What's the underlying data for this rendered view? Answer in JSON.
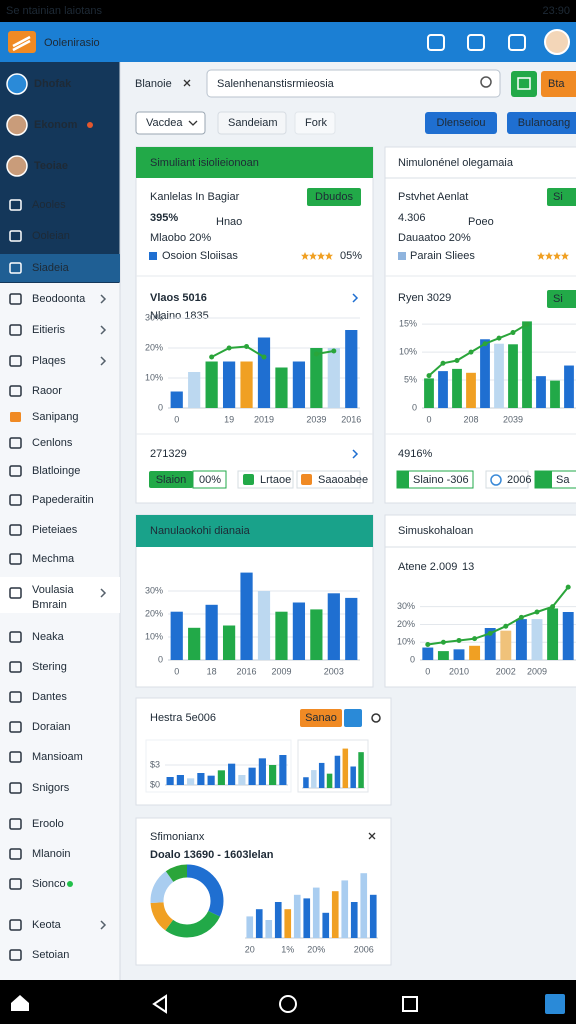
{
  "status_bar": {
    "left": "Se ntainian laiotans",
    "time": "23:90"
  },
  "app_bar": {
    "title": "Oolenirasio"
  },
  "sidebar": {
    "items": [
      {
        "label": "Dhofak"
      },
      {
        "label": "Ekonom"
      },
      {
        "label": "Teoiae"
      },
      {
        "label": "Aooles"
      },
      {
        "label": "Ooleian"
      },
      {
        "label": "Siadeia"
      },
      {
        "label": "Beodoonta"
      },
      {
        "label": "Eitieris"
      },
      {
        "label": "Plaqes"
      },
      {
        "label": "Raoor"
      },
      {
        "label": "Sanipang"
      },
      {
        "label": "Cenlons"
      },
      {
        "label": "Blatloinge"
      },
      {
        "label": "Papederaitin"
      },
      {
        "label": "Pieteiaes"
      },
      {
        "label": "Mechma"
      },
      {
        "label": "Voulasia",
        "sub": "Bmrain"
      },
      {
        "label": "Neaka"
      },
      {
        "label": "Stering"
      },
      {
        "label": "Dantes"
      },
      {
        "label": "Doraian"
      },
      {
        "label": "Mansioam"
      },
      {
        "label": "Snigors"
      },
      {
        "label": "Eroolo"
      },
      {
        "label": "Mlanoin"
      },
      {
        "label": "Sionco"
      },
      {
        "label": "Keota"
      },
      {
        "label": "Setoian"
      }
    ]
  },
  "toolbar": {
    "tab": "Blanoie",
    "search": "Salenhenanstisrmieosia",
    "orange_button": "Bta",
    "filter": "Vacdea",
    "chip1": "Sandeiam",
    "chip2": "Fork",
    "button1": "Dlenseiou",
    "button2": "Bulanoang"
  },
  "cards": [
    {
      "title": "Simuliant isiolieionoan",
      "label": "Kanlelas In Bagiar",
      "big": "395%",
      "big_note": "Hnao",
      "sub": "Mlaobo 20%",
      "tag": "Dbudos",
      "meta": "Osoion Sloiisas",
      "rating": "05%",
      "chart": {
        "title": "Vlaos 5016",
        "subtitle": "Nlaino 1835",
        "ylim": [
          0,
          35
        ],
        "yticks": [
          0,
          {
            "value": 10,
            "label": "10%"
          },
          {
            "value": 20,
            "label": "20%"
          },
          {
            "value": 30,
            "label": "30%"
          }
        ],
        "categories": [
          "0",
          null,
          null,
          "19",
          null,
          "2019",
          null,
          null,
          "2039",
          null,
          "2016"
        ],
        "values": [
          5.5,
          12,
          15.5,
          15.5,
          15.5,
          23.5,
          13.5,
          15.5,
          20,
          20,
          26
        ],
        "colors": [
          "#1f6fd1",
          "#bcd8f0",
          "#22a948",
          "#1f6fd1",
          "#f0a023",
          "#1f6fd1",
          "#22a948",
          "#1f6fd1",
          "#22a948",
          "#bcd8f0",
          "#1f6fd1"
        ],
        "line": [
          null,
          null,
          17,
          20,
          20.5,
          17,
          null,
          null,
          18,
          19,
          null
        ],
        "line_color": "#2aa53a"
      },
      "total": "271329",
      "chips": [
        "Slaion",
        "00%",
        "Lrtaoe",
        "Saaoabee"
      ]
    },
    {
      "title": "Nimulonénel olegamaia",
      "label": "Pstvhet Aenlat",
      "big": "4.306",
      "big_note": "Poeo",
      "sub": "Dauaatoo 20%",
      "tag": "Si",
      "meta": "Parain Sliees",
      "chart": {
        "title": "Ryen 3029",
        "tag": "Si",
        "ylim": [
          0,
          17
        ],
        "yticks": [
          0,
          {
            "value": 5,
            "label": "5%"
          },
          {
            "value": 10,
            "label": "10%"
          },
          {
            "value": 15,
            "label": "15%"
          }
        ],
        "categories": [
          "0",
          null,
          null,
          "208",
          null,
          null,
          "2039",
          null,
          null,
          null,
          null
        ],
        "values": [
          5.3,
          6.6,
          7,
          6.3,
          12.3,
          11.5,
          11.4,
          15.5,
          5.7,
          4.9,
          7.6
        ],
        "colors": [
          "#22a948",
          "#1f6fd1",
          "#22a948",
          "#f0a023",
          "#1f6fd1",
          "#bcd8f0",
          "#22a948",
          "#22a948",
          "#1f6fd1",
          "#22a948",
          "#1f6fd1"
        ],
        "line": [
          5.8,
          8,
          8.5,
          10,
          11.5,
          12.5,
          13.5,
          15,
          null,
          null,
          null
        ],
        "line_color": "#2aa53a"
      },
      "total": "4916%",
      "chips": [
        "Slaino -306",
        "2006",
        "Sa"
      ]
    },
    {
      "title": "Nanulaokohi dianaia",
      "chart": {
        "ylim": [
          0,
          40
        ],
        "yticks": [
          0,
          {
            "value": 10,
            "label": "10%"
          },
          {
            "value": 20,
            "label": "20%"
          },
          {
            "value": 30,
            "label": "30%"
          }
        ],
        "categories": [
          "0",
          null,
          "18",
          null,
          "2016",
          null,
          "2009",
          null,
          null,
          "2003",
          null
        ],
        "values": [
          21,
          14,
          24,
          15,
          38,
          30,
          21,
          25,
          22,
          29,
          27
        ],
        "colors": [
          "#1f6fd1",
          "#22a948",
          "#1f6fd1",
          "#22a948",
          "#1f6fd1",
          "#bcd8f0",
          "#22a948",
          "#1f6fd1",
          "#22a948",
          "#1f6fd1",
          "#1f6fd1"
        ]
      }
    },
    {
      "title": "Simuskohaloan",
      "subtitle": "Atene 2.009",
      "note": "13",
      "chart": {
        "ylim": [
          0,
          45
        ],
        "yticks": [
          0,
          {
            "value": 10,
            "label": "10%"
          },
          {
            "value": 20,
            "label": "20%"
          },
          {
            "value": 30,
            "label": "30%"
          }
        ],
        "categories": [
          "0",
          null,
          "2010",
          null,
          null,
          "2002",
          null,
          "2009",
          null,
          null
        ],
        "values": [
          7,
          5,
          6,
          8,
          18,
          16.5,
          23,
          23,
          29,
          27
        ],
        "colors": [
          "#1f6fd1",
          "#22a948",
          "#1f6fd1",
          "#f0a023",
          "#1f6fd1",
          "#f0c27a",
          "#1f6fd1",
          "#bcd8f0",
          "#22a948",
          "#1f6fd1"
        ],
        "line": [
          8.7,
          10,
          11,
          12,
          15,
          19,
          24,
          27,
          30,
          41
        ],
        "line_color": "#2aa53a"
      }
    },
    {
      "title": "Hestra 5e006",
      "button": "Sanao",
      "chart": {
        "ylim": [
          0,
          6
        ],
        "yticks": [
          {
            "value": 0,
            "label": "$0"
          },
          {
            "value": 3,
            "label": "$3"
          }
        ],
        "values": [
          1.2,
          1.5,
          1,
          1.8,
          1.4,
          2.2,
          3.2,
          1.5,
          2.6,
          4,
          3,
          4.5
        ],
        "colors": [
          "#1f6fd1",
          "#1f6fd1",
          "#bcd8f0",
          "#1f6fd1",
          "#1f6fd1",
          "#22a948",
          "#1f6fd1",
          "#bcd8f0",
          "#1f6fd1",
          "#1f6fd1",
          "#22a948",
          "#1f6fd1"
        ]
      },
      "chart2": {
        "ylim": [
          0,
          6
        ],
        "values": [
          1.5,
          2.5,
          3.5,
          2,
          4.5,
          5.5,
          3,
          5
        ],
        "colors": [
          "#1f6fd1",
          "#bcd8f0",
          "#1f6fd1",
          "#22a948",
          "#1f6fd1",
          "#f0a023",
          "#1f6fd1",
          "#22a948"
        ]
      }
    },
    {
      "title": "Sfimonianx",
      "subtitle": "Doalo 13690 - 1603lelan",
      "donut": {
        "values": [
          32,
          28,
          14,
          16,
          10
        ],
        "colors": [
          "#1f6fd1",
          "#22a948",
          "#f0a023",
          "#a9cdf0",
          "#2aa53a"
        ]
      },
      "chart": {
        "ylim": [
          0,
          10
        ],
        "categories": [
          "20",
          null,
          null,
          null,
          "1%",
          null,
          null,
          "20%",
          null,
          null,
          null,
          null,
          "2006",
          null
        ],
        "values": [
          3,
          4,
          2.5,
          5,
          4,
          6,
          5.5,
          7,
          3.5,
          6.5,
          8,
          5,
          9,
          6
        ],
        "colors": [
          "#a9cdf0",
          "#1f6fd1",
          "#a9cdf0",
          "#1f6fd1",
          "#f0a023",
          "#a9cdf0",
          "#1f6fd1",
          "#a9cdf0",
          "#1f6fd1",
          "#f0a023",
          "#a9cdf0",
          "#1f6fd1",
          "#a9cdf0",
          "#1f6fd1"
        ]
      }
    }
  ]
}
